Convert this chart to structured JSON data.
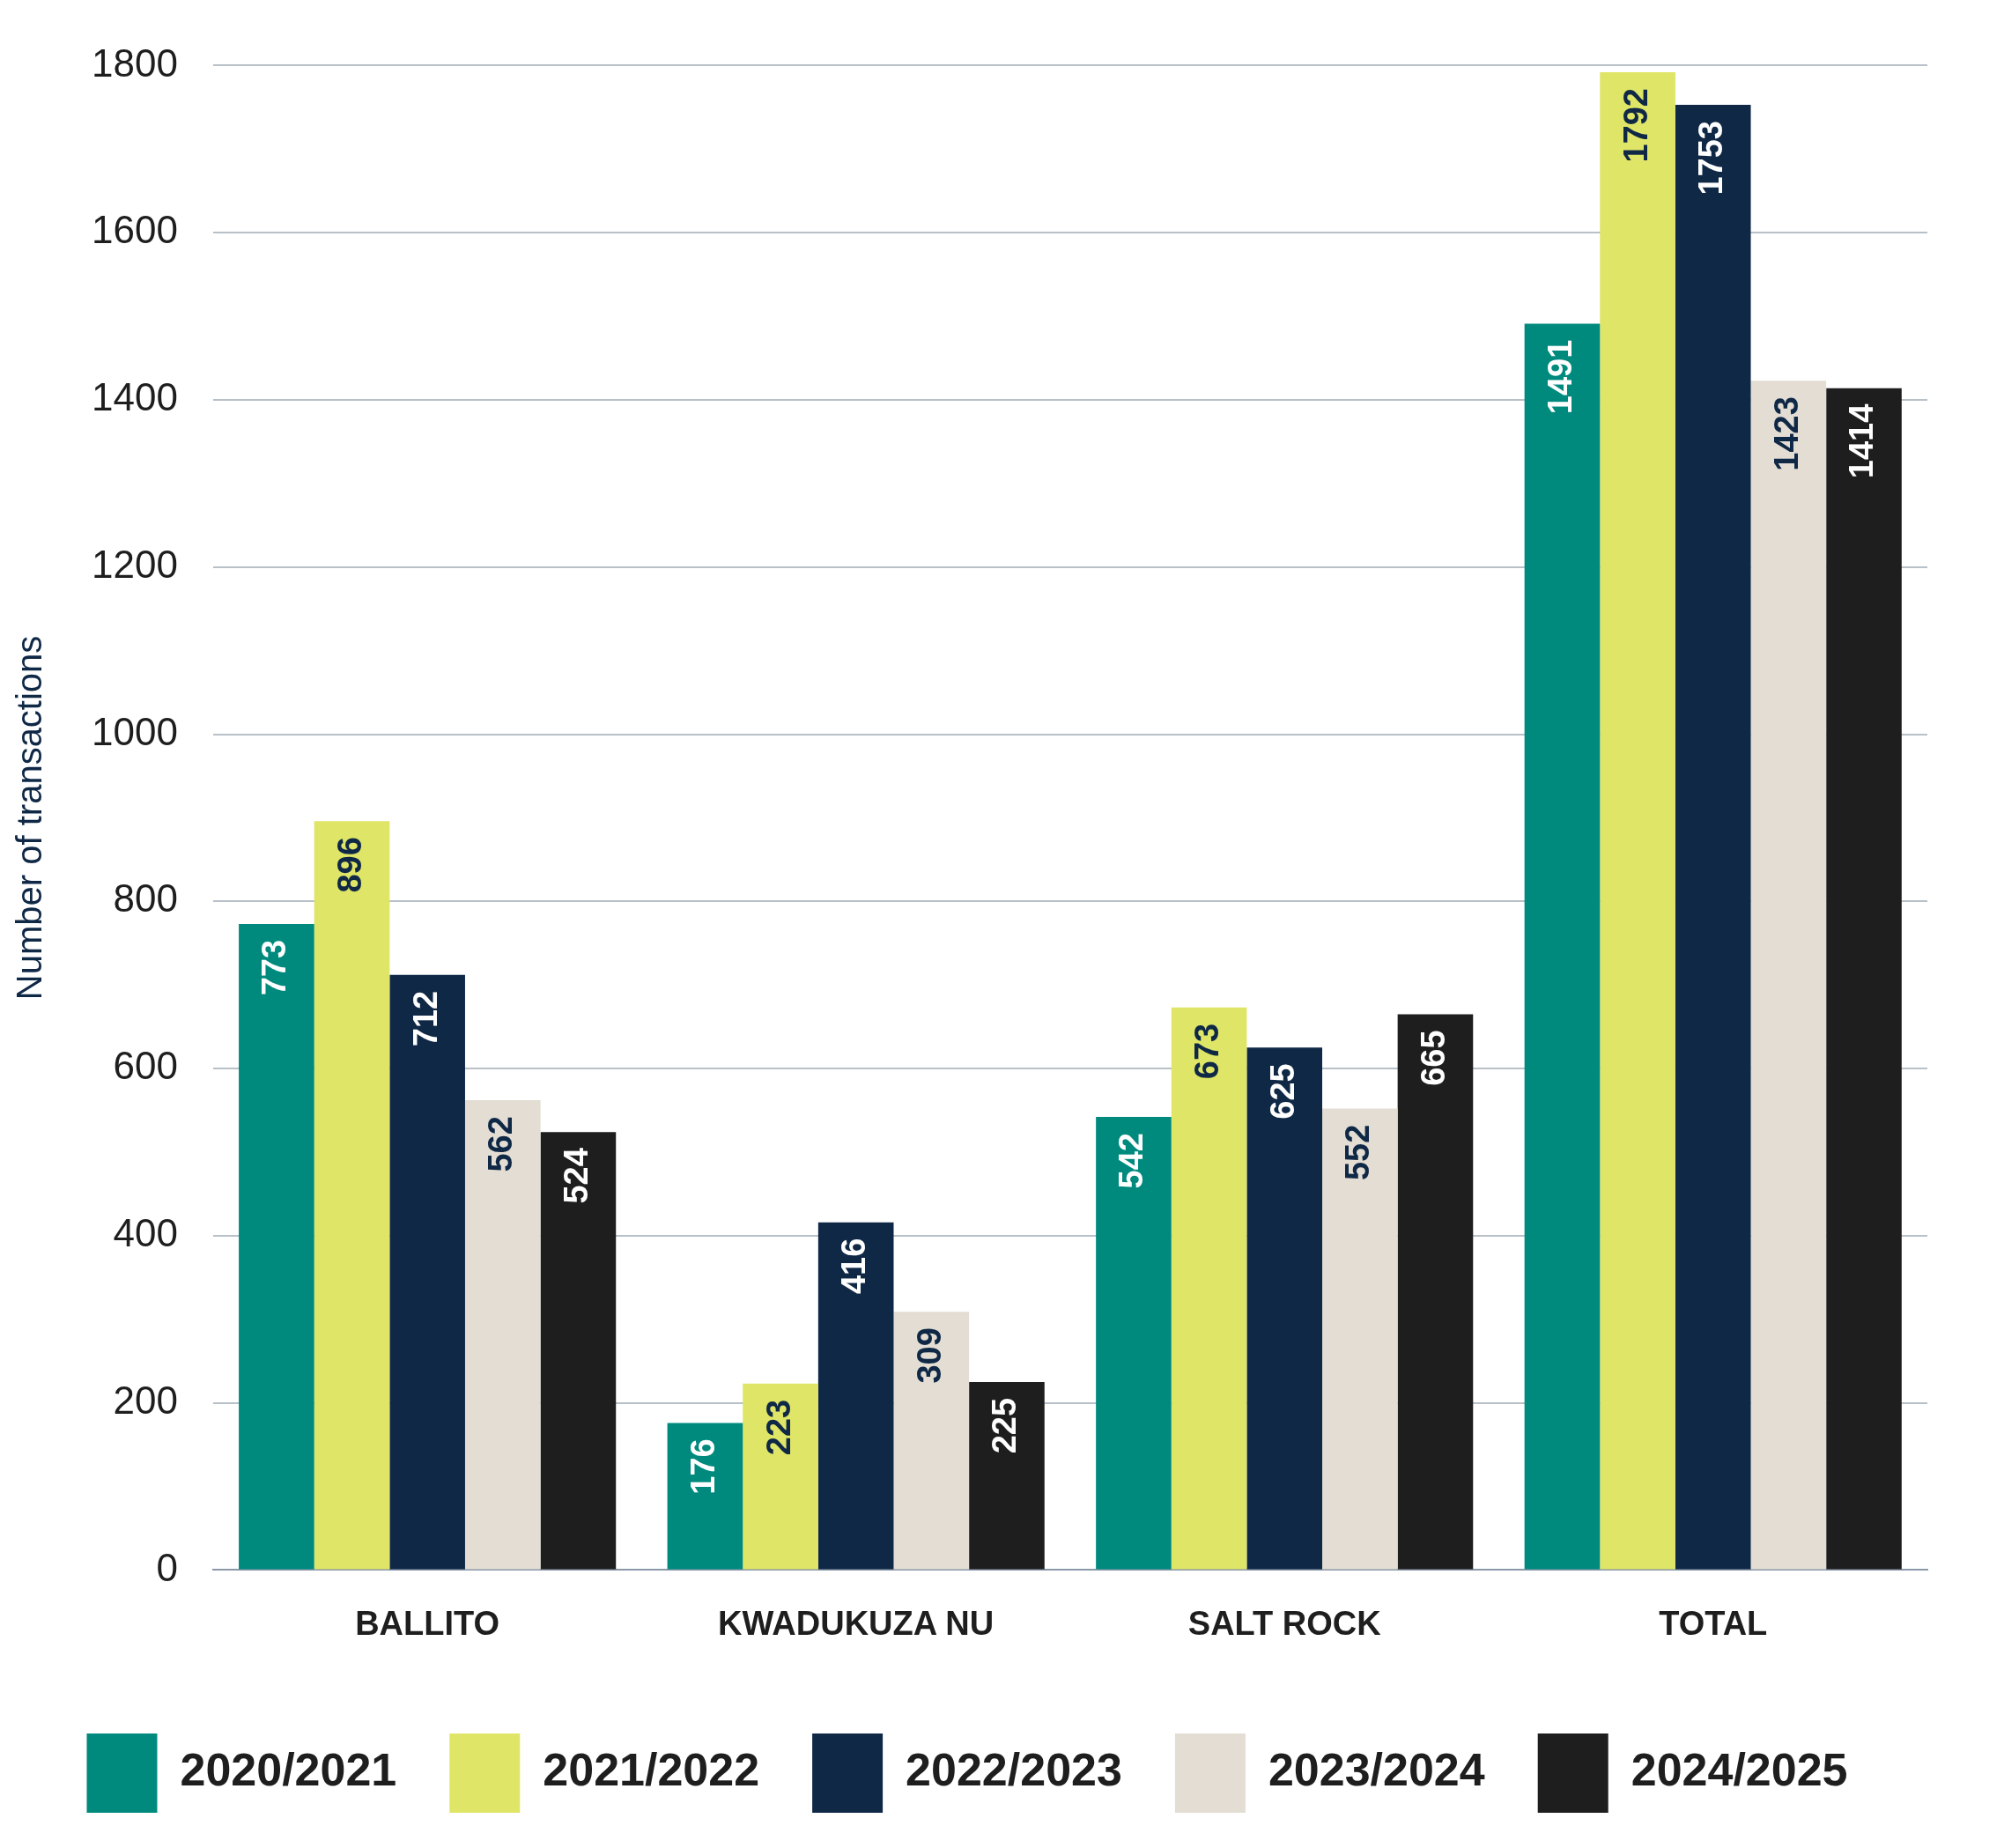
{
  "chart_data": {
    "type": "bar",
    "ylabel": "Number of transactions",
    "categories": [
      "BALLITO",
      "KWADUKUZA NU",
      "SALT ROCK",
      "TOTAL"
    ],
    "series": [
      {
        "name": "2020/2021",
        "color": "#008a7e",
        "values": [
          773,
          176,
          542,
          1491
        ]
      },
      {
        "name": "2021/2022",
        "color": "#dfe566",
        "values": [
          896,
          223,
          673,
          1792
        ]
      },
      {
        "name": "2022/2023",
        "color": "#0f2846",
        "values": [
          712,
          416,
          625,
          1753
        ]
      },
      {
        "name": "2023/2024",
        "color": "#e3ddd3",
        "values": [
          562,
          309,
          552,
          1423
        ]
      },
      {
        "name": "2024/2025",
        "color": "#1e1e1e",
        "values": [
          524,
          225,
          665,
          1414
        ]
      }
    ],
    "ylim": [
      0,
      1800
    ],
    "yticks": [
      0,
      200,
      400,
      600,
      800,
      1000,
      1200,
      1400,
      1600,
      1800
    ],
    "grid": "y",
    "legend": "bottom",
    "data_labels": true
  }
}
